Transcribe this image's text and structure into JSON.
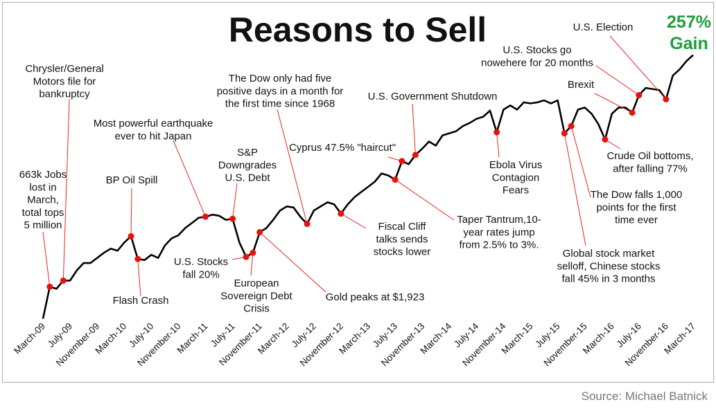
{
  "chart_data": {
    "type": "line",
    "title": "Reasons to Sell",
    "gain_label": [
      "257%",
      "Gain"
    ],
    "source": "Source: Michael Batnick",
    "x": [
      "March-09",
      "April-09",
      "May-09",
      "June-09",
      "July-09",
      "August-09",
      "September-09",
      "October-09",
      "November-09",
      "December-09",
      "January-10",
      "February-10",
      "March-10",
      "April-10",
      "May-10",
      "June-10",
      "July-10",
      "August-10",
      "September-10",
      "October-10",
      "November-10",
      "December-10",
      "January-11",
      "February-11",
      "March-11",
      "April-11",
      "May-11",
      "June-11",
      "July-11",
      "August-11",
      "September-11",
      "October-11",
      "November-11",
      "December-11",
      "January-12",
      "February-12",
      "March-12",
      "April-12",
      "May-12",
      "June-12",
      "July-12",
      "August-12",
      "September-12",
      "October-12",
      "November-12",
      "December-12",
      "January-13",
      "February-13",
      "March-13",
      "April-13",
      "May-13",
      "June-13",
      "July-13",
      "August-13",
      "September-13",
      "October-13",
      "November-13",
      "December-13",
      "January-14",
      "February-14",
      "March-14",
      "April-14",
      "May-14",
      "June-14",
      "July-14",
      "August-14",
      "September-14",
      "October-14",
      "November-14",
      "December-14",
      "January-15",
      "February-15",
      "March-15",
      "April-15",
      "May-15",
      "June-15",
      "July-15",
      "August-15",
      "September-15",
      "October-15",
      "November-15",
      "December-15",
      "January-16",
      "February-16",
      "March-16",
      "April-16",
      "May-16",
      "June-16",
      "July-16",
      "August-16",
      "September-16",
      "October-16",
      "November-16",
      "December-16",
      "January-17",
      "February-17",
      "March-17"
    ],
    "series": [
      {
        "color": "#000000",
        "values": [
          1,
          32,
          30,
          38,
          38,
          48,
          55,
          55,
          60,
          65,
          69,
          67,
          75,
          81,
          59,
          58,
          63,
          60,
          72,
          79,
          82,
          89,
          94,
          99,
          100,
          102,
          101,
          97,
          98,
          75,
          61,
          65,
          85,
          89,
          97,
          106,
          110,
          109,
          100,
          93,
          106,
          110,
          114,
          112,
          103,
          112,
          119,
          124,
          129,
          134,
          142,
          140,
          136,
          154,
          151,
          160,
          166,
          173,
          169,
          179,
          181,
          183,
          188,
          191,
          195,
          197,
          203,
          182,
          204,
          208,
          204,
          211,
          210,
          211,
          213,
          210,
          213,
          181,
          188,
          204,
          206,
          200,
          190,
          175,
          200,
          206,
          206,
          201,
          218,
          225,
          224,
          223,
          214,
          237,
          243,
          251,
          257
        ]
      }
    ],
    "xticks": [
      "March-09",
      "July-09",
      "November-09",
      "March-10",
      "July-10",
      "November-10",
      "March-11",
      "July-11",
      "November-11",
      "March-12",
      "July-12",
      "November-12",
      "March-13",
      "July-13",
      "November-13",
      "March-14",
      "July-14",
      "November-14",
      "March-15",
      "July-15",
      "November-15",
      "March-16",
      "July-16",
      "November-16",
      "March-17"
    ],
    "ylim": [
      0,
      260
    ],
    "annotations": [
      {
        "text": [
          "663k Jobs",
          "lost in",
          "March,",
          "total tops",
          "5 million"
        ],
        "x": "April-09",
        "y": 32
      },
      {
        "text": [
          "Chrysler/General",
          "Motors file for",
          "bankruptcy"
        ],
        "x": "June-09",
        "y": 38
      },
      {
        "text": [
          "BP Oil Spill"
        ],
        "x": "April-10",
        "y": 81
      },
      {
        "text": [
          "Flash Crash"
        ],
        "x": "May-10",
        "y": 59
      },
      {
        "text": [
          "Most powerful earthquake",
          "ever to hit Japan"
        ],
        "x": "March-11",
        "y": 100
      },
      {
        "text": [
          "S&P",
          "Downgrades",
          "U.S. Debt"
        ],
        "x": "July-11",
        "y": 98
      },
      {
        "text": [
          "U.S. Stocks",
          "fall 20%"
        ],
        "x": "September-11",
        "y": 61
      },
      {
        "text": [
          "European",
          "Sovereign Debt",
          "Crisis"
        ],
        "x": "October-11",
        "y": 65
      },
      {
        "text": [
          "Gold peaks at $1,923"
        ],
        "x": "November-11",
        "y": 85
      },
      {
        "text": [
          "The Dow only had five",
          "positive days in a month for",
          "the first time since 1968"
        ],
        "x": "June-12",
        "y": 93
      },
      {
        "text": [
          "Fiscal Cliff",
          "talks sends",
          "stocks lower"
        ],
        "x": "November-12",
        "y": 103
      },
      {
        "text": [
          "Taper Tantrum,10-",
          "year rates jump",
          "from 2.5% to 3%."
        ],
        "x": "July-13",
        "y": 136
      },
      {
        "text": [
          "Cyprus 47.5% \"haircut\""
        ],
        "x": "August-13",
        "y": 154
      },
      {
        "text": [
          "U.S. Government  Shutdown"
        ],
        "x": "October-13",
        "y": 160
      },
      {
        "text": [
          "Ebola Virus",
          "Contagion",
          "Fears"
        ],
        "x": "October-14",
        "y": 182
      },
      {
        "text": [
          "Global stock market",
          "selloff, Chinese stocks",
          "fall 45% in 3 months"
        ],
        "x": "August-15",
        "y": 181
      },
      {
        "text": [
          "The Dow falls 1,000",
          "points for the first",
          "time ever"
        ],
        "x": "September-15",
        "y": 188
      },
      {
        "text": [
          "Crude Oil bottoms,",
          "after falling 77%"
        ],
        "x": "February-16",
        "y": 175
      },
      {
        "text": [
          "Brexit"
        ],
        "x": "June-16",
        "y": 201
      },
      {
        "text": [
          "U.S. Stocks go",
          "nowehere for 20 months"
        ],
        "x": "July-16",
        "y": 218
      },
      {
        "text": [
          "U.S. Election"
        ],
        "x": "November-16",
        "y": 214
      }
    ]
  }
}
